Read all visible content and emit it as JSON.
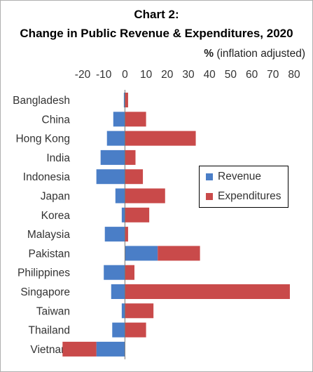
{
  "chart_data": {
    "type": "bar",
    "orientation": "horizontal",
    "title": "Chart 2:",
    "subtitle": "Change in Public Revenue & Expenditures, 2020",
    "unit_label": "%",
    "unit_note": "(inflation adjusted)",
    "xlim": [
      -20,
      80
    ],
    "x_ticks": [
      "-20",
      "-10",
      "0",
      "10",
      "20",
      "30",
      "40",
      "50",
      "60",
      "70",
      "80"
    ],
    "x_tick_values": [
      -20,
      -10,
      0,
      10,
      20,
      30,
      40,
      50,
      60,
      70,
      80
    ],
    "grid": false,
    "legend_position": "right",
    "categories": [
      "Bangladesh",
      "China",
      "Hong Kong",
      "India",
      "Indonesia",
      "Japan",
      "Korea",
      "Malaysia",
      "Pakistan",
      "Philippines",
      "Singapore",
      "Taiwan",
      "Thailand",
      "Vietnam"
    ],
    "series": [
      {
        "name": "Revenue",
        "color": "#4a7ec7",
        "values": [
          -0.5,
          -5.5,
          -8.5,
          -11.5,
          -13.5,
          -4.5,
          -1.5,
          -9.5,
          15.5,
          -10,
          -6.5,
          -1.5,
          -6,
          -13.5
        ]
      },
      {
        "name": "Expenditures",
        "color": "#c94a4a",
        "values": [
          1.5,
          10,
          33.5,
          5,
          8.5,
          19,
          11.5,
          1.5,
          20,
          4.5,
          78,
          13.5,
          10,
          -16
        ]
      }
    ]
  }
}
